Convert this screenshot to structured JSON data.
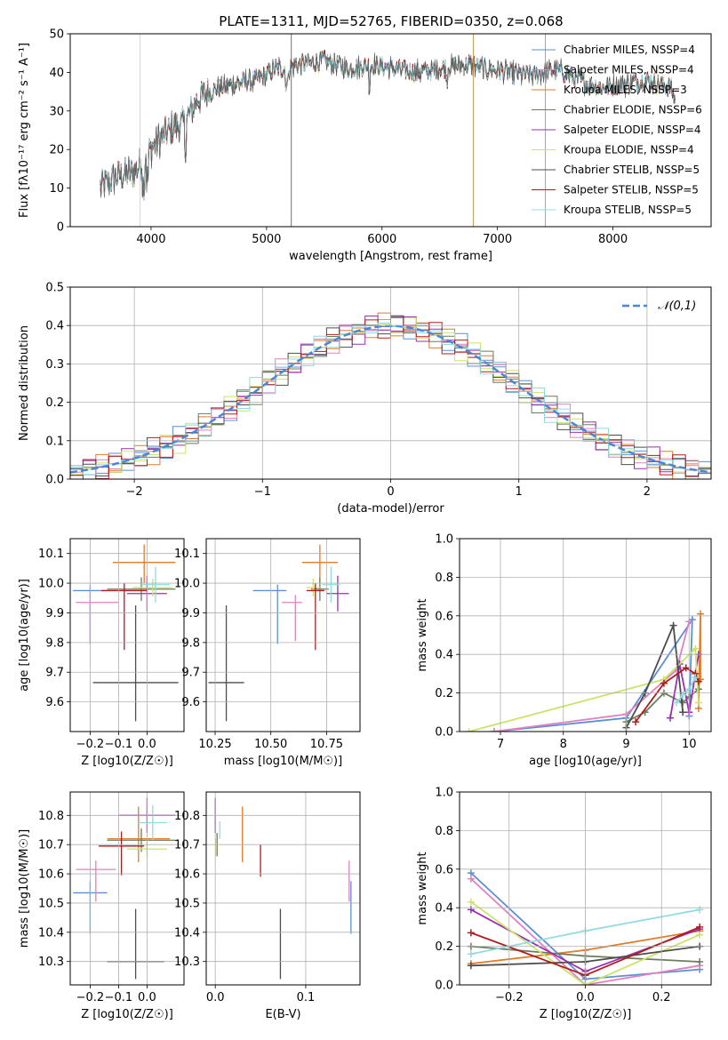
{
  "title": "PLATE=1311, MJD=52765, FIBERID=0350, z=0.068",
  "colors": {
    "chabrier_miles": "#5b8fd6",
    "salpeter_miles": "#e27fc0",
    "kroupa_miles": "#e07b2a",
    "chabrier_elodie": "#6a7d5e",
    "salpeter_elodie": "#9a2fb4",
    "kroupa_elodie": "#c9e46a",
    "chabrier_stelib": "#4d4d4d",
    "salpeter_stelib": "#b01c1c",
    "kroupa_stelib": "#8fdbe0",
    "spectrum": "#555555"
  },
  "chart_data": [
    {
      "id": "spectrum",
      "type": "line",
      "title": "PLATE=1311, MJD=52765, FIBERID=0350, z=0.068",
      "xlabel": "wavelength [Angstrom, rest frame]",
      "ylabel": "Flux [fλ10⁻¹⁷ erg cm⁻² s⁻¹ A⁻¹]",
      "xlim": [
        3300,
        8850
      ],
      "ylim": [
        0,
        50
      ],
      "xticks": [
        4000,
        5000,
        6000,
        7000,
        8000
      ],
      "yticks": [
        0,
        10,
        20,
        30,
        40,
        50
      ],
      "continuum": {
        "x": [
          3560,
          3700,
          3850,
          3950,
          4050,
          4200,
          4300,
          4400,
          4500,
          4700,
          4900,
          5100,
          5300,
          5500,
          5700,
          5900,
          6100,
          6300,
          6500,
          6700,
          6900,
          7100,
          7300,
          7500,
          7700,
          7900,
          8100,
          8300,
          8500,
          8540
        ],
        "y": [
          10,
          13,
          14,
          18,
          22,
          26,
          27,
          33,
          35,
          37,
          38,
          41,
          42,
          43,
          41,
          42,
          41,
          40,
          41,
          42,
          41,
          40,
          39,
          41,
          38,
          36,
          37,
          38,
          36,
          33
        ]
      },
      "legend": [
        {
          "label": "Chabrier MILES, NSSP=4",
          "color": "#5b8fd6"
        },
        {
          "label": "Salpeter MILES, NSSP=4",
          "color": "#e27fc0"
        },
        {
          "label": "Kroupa MILES, NSSP=3",
          "color": "#e07b2a"
        },
        {
          "label": "Chabrier ELODIE, NSSP=6",
          "color": "#6a7d5e"
        },
        {
          "label": "Salpeter ELODIE, NSSP=4",
          "color": "#9a2fb4"
        },
        {
          "label": "Kroupa ELODIE, NSSP=4",
          "color": "#c9e46a"
        },
        {
          "label": "Chabrier STELIB, NSSP=5",
          "color": "#4d4d4d"
        },
        {
          "label": "Salpeter STELIB, NSSP=5",
          "color": "#b01c1c"
        },
        {
          "label": "Kroupa STELIB, NSSP=5",
          "color": "#8fdbe0"
        }
      ],
      "legend_placement": "upper-right"
    },
    {
      "id": "residuals",
      "type": "line",
      "xlabel": "(data-model)/error",
      "ylabel": "Normed distribution",
      "xlim": [
        -2.5,
        2.5
      ],
      "ylim": [
        0,
        0.5
      ],
      "xticks": [
        -2,
        -1,
        0,
        1,
        2
      ],
      "yticks": [
        0.0,
        0.1,
        0.2,
        0.3,
        0.4,
        0.5
      ],
      "grid": true,
      "gaussian_label": "𝒩(0,1)",
      "gaussian_color": "#4a86d8",
      "legend_placement": "upper-right"
    },
    {
      "id": "age_vs_Z",
      "type": "scatter",
      "xlabel": "Z [log10(Z/Z☉)]",
      "ylabel": "age [log10(age/yr)]",
      "xlim": [
        -0.27,
        0.13
      ],
      "ylim": [
        9.5,
        10.15
      ],
      "xticks": [
        -0.2,
        -0.1,
        0.0
      ],
      "yticks": [
        9.6,
        9.7,
        9.8,
        9.9,
        10.0,
        10.1
      ],
      "grid": true,
      "points": [
        {
          "model": "chabrier_miles",
          "x": -0.2,
          "y": 9.975,
          "xerr": [
            0.06,
            0.06
          ],
          "yerr": [
            0.18,
            0.02
          ]
        },
        {
          "model": "salpeter_miles",
          "x": -0.2,
          "y": 9.935,
          "xerr": [
            0.05,
            0.1
          ],
          "yerr": [
            0.13,
            0.025
          ]
        },
        {
          "model": "kroupa_miles",
          "x": -0.01,
          "y": 10.07,
          "xerr": [
            0.11,
            0.11
          ],
          "yerr": [
            0.07,
            0.06
          ]
        },
        {
          "model": "chabrier_elodie",
          "x": -0.02,
          "y": 9.98,
          "xerr": [
            0.12,
            0.12
          ],
          "yerr": [
            0.04,
            0.04
          ]
        },
        {
          "model": "salpeter_elodie",
          "x": 0.0,
          "y": 9.965,
          "xerr": [
            0.07,
            0.07
          ],
          "yerr": [
            0.06,
            0.06
          ]
        },
        {
          "model": "kroupa_elodie",
          "x": 0.02,
          "y": 9.985,
          "xerr": [
            0.07,
            0.07
          ],
          "yerr": [
            0.03,
            0.03
          ]
        },
        {
          "model": "chabrier_stelib",
          "x": -0.04,
          "y": 9.665,
          "xerr": [
            0.15,
            0.15
          ],
          "yerr": [
            0.13,
            0.26
          ]
        },
        {
          "model": "salpeter_stelib",
          "x": -0.08,
          "y": 9.975,
          "xerr": [
            0.08,
            0.08
          ],
          "yerr": [
            0.2,
            0.025
          ]
        },
        {
          "model": "kroupa_stelib",
          "x": 0.03,
          "y": 9.995,
          "xerr": [
            0.05,
            0.05
          ],
          "yerr": [
            0.06,
            0.06
          ]
        }
      ]
    },
    {
      "id": "age_vs_mass",
      "type": "scatter",
      "xlabel": "mass [log10(M/M☉)]",
      "ylabel": "",
      "xlim": [
        10.21,
        10.9
      ],
      "ylim": [
        9.5,
        10.15
      ],
      "xticks": [
        10.25,
        10.5,
        10.75
      ],
      "yticks": [
        9.6,
        9.7,
        9.8,
        9.9,
        10.0,
        10.1
      ],
      "grid": true,
      "points": [
        {
          "model": "chabrier_miles",
          "x": 10.53,
          "y": 9.975,
          "xerr": [
            0.11,
            0.04
          ],
          "yerr": [
            0.18,
            0.02
          ]
        },
        {
          "model": "salpeter_miles",
          "x": 10.61,
          "y": 9.935,
          "xerr": [
            0.06,
            0.03
          ],
          "yerr": [
            0.13,
            0.025
          ]
        },
        {
          "model": "kroupa_miles",
          "x": 10.72,
          "y": 10.07,
          "xerr": [
            0.08,
            0.08
          ],
          "yerr": [
            0.07,
            0.06
          ]
        },
        {
          "model": "chabrier_elodie",
          "x": 10.72,
          "y": 9.98,
          "xerr": [
            0.04,
            0.04
          ],
          "yerr": [
            0.04,
            0.04
          ]
        },
        {
          "model": "salpeter_elodie",
          "x": 10.8,
          "y": 9.965,
          "xerr": [
            0.05,
            0.05
          ],
          "yerr": [
            0.06,
            0.06
          ]
        },
        {
          "model": "kroupa_elodie",
          "x": 10.69,
          "y": 9.985,
          "xerr": [
            0.03,
            0.03
          ],
          "yerr": [
            0.03,
            0.03
          ]
        },
        {
          "model": "chabrier_stelib",
          "x": 10.3,
          "y": 9.665,
          "xerr": [
            0.08,
            0.08
          ],
          "yerr": [
            0.13,
            0.26
          ]
        },
        {
          "model": "salpeter_stelib",
          "x": 10.7,
          "y": 9.975,
          "xerr": [
            0.04,
            0.04
          ],
          "yerr": [
            0.2,
            0.025
          ]
        },
        {
          "model": "kroupa_stelib",
          "x": 10.77,
          "y": 9.995,
          "xerr": [
            0.04,
            0.04
          ],
          "yerr": [
            0.06,
            0.06
          ]
        }
      ]
    },
    {
      "id": "mass_weight_vs_age",
      "type": "line",
      "xlabel": "age [log10(age/yr)]",
      "ylabel": "mass weight",
      "xlim": [
        6.35,
        10.35
      ],
      "ylim": [
        0,
        1.0
      ],
      "xticks": [
        7,
        8,
        9,
        10
      ],
      "yticks": [
        0.0,
        0.2,
        0.4,
        0.6,
        0.8,
        1.0
      ],
      "grid": true,
      "series": [
        {
          "model": "chabrier_miles",
          "x": [
            6.9,
            9.0,
            10.05,
            10.0
          ],
          "y": [
            0.0,
            0.07,
            0.58,
            0.08
          ]
        },
        {
          "model": "salpeter_miles",
          "x": [
            6.9,
            9.0,
            9.8,
            10.0
          ],
          "y": [
            0.0,
            0.09,
            0.32,
            0.57
          ]
        },
        {
          "model": "kroupa_miles",
          "x": [
            10.15,
            10.18,
            10.18
          ],
          "y": [
            0.12,
            0.61,
            0.27
          ]
        },
        {
          "model": "chabrier_elodie",
          "x": [
            9.0,
            9.3,
            9.6,
            9.9,
            10.0,
            10.15
          ],
          "y": [
            0.05,
            0.1,
            0.2,
            0.15,
            0.18,
            0.22
          ]
        },
        {
          "model": "salpeter_elodie",
          "x": [
            9.7,
            9.85,
            10.0,
            10.15
          ],
          "y": [
            0.07,
            0.35,
            0.1,
            0.4
          ]
        },
        {
          "model": "kroupa_elodie",
          "x": [
            6.5,
            9.6,
            10.1,
            10.15
          ],
          "y": [
            0.0,
            0.27,
            0.43,
            0.15
          ]
        },
        {
          "model": "chabrier_stelib",
          "x": [
            9.0,
            9.3,
            9.75,
            9.9
          ],
          "y": [
            0.02,
            0.2,
            0.55,
            0.1
          ]
        },
        {
          "model": "salpeter_stelib",
          "x": [
            9.15,
            9.6,
            9.95,
            10.1,
            10.15
          ],
          "y": [
            0.05,
            0.25,
            0.33,
            0.3,
            0.26
          ]
        },
        {
          "model": "kroupa_stelib",
          "x": [
            9.8,
            9.9,
            10.0,
            10.1
          ],
          "y": [
            0.15,
            0.19,
            0.22,
            0.28
          ]
        }
      ]
    },
    {
      "id": "mass_vs_Z",
      "type": "scatter",
      "xlabel": "Z [log10(Z/Z☉)]",
      "ylabel": "mass [log10(M/M☉)]",
      "xlim": [
        -0.27,
        0.13
      ],
      "ylim": [
        10.22,
        10.88
      ],
      "xticks": [
        -0.2,
        -0.1,
        0.0
      ],
      "yticks": [
        10.3,
        10.4,
        10.5,
        10.6,
        10.7,
        10.8
      ],
      "grid": true,
      "points": [
        {
          "model": "chabrier_miles",
          "x": -0.2,
          "y": 10.535,
          "xerr": [
            0.06,
            0.06
          ],
          "yerr": [
            0.14,
            0.04
          ]
        },
        {
          "model": "salpeter_miles",
          "x": -0.18,
          "y": 10.615,
          "xerr": [
            0.07,
            0.07
          ],
          "yerr": [
            0.11,
            0.03
          ]
        },
        {
          "model": "kroupa_miles",
          "x": -0.03,
          "y": 10.72,
          "xerr": [
            0.11,
            0.11
          ],
          "yerr": [
            0.08,
            0.11
          ]
        },
        {
          "model": "chabrier_elodie",
          "x": -0.02,
          "y": 10.715,
          "xerr": [
            0.12,
            0.12
          ],
          "yerr": [
            0.04,
            0.04
          ]
        },
        {
          "model": "salpeter_elodie",
          "x": 0.0,
          "y": 10.8,
          "xerr": [
            0.1,
            0.1
          ],
          "yerr": [
            0.06,
            0.06
          ]
        },
        {
          "model": "kroupa_elodie",
          "x": 0.0,
          "y": 10.685,
          "xerr": [
            0.07,
            0.07
          ],
          "yerr": [
            0.03,
            0.03
          ]
        },
        {
          "model": "chabrier_stelib",
          "x": -0.04,
          "y": 10.3,
          "xerr": [
            0.1,
            0.1
          ],
          "yerr": [
            0.06,
            0.18
          ]
        },
        {
          "model": "salpeter_stelib",
          "x": -0.09,
          "y": 10.695,
          "xerr": [
            0.08,
            0.08
          ],
          "yerr": [
            0.1,
            0.05
          ]
        },
        {
          "model": "kroupa_stelib",
          "x": 0.02,
          "y": 10.775,
          "xerr": [
            0.05,
            0.05
          ],
          "yerr": [
            0.06,
            0.06
          ]
        }
      ]
    },
    {
      "id": "mass_vs_ebv",
      "type": "scatter",
      "xlabel": "E(B-V)",
      "ylabel": "",
      "xlim": [
        -0.01,
        0.16
      ],
      "ylim": [
        10.22,
        10.88
      ],
      "xticks": [
        0.0,
        0.1
      ],
      "yticks": [
        10.3,
        10.4,
        10.5,
        10.6,
        10.7,
        10.8
      ],
      "grid": true,
      "points": [
        {
          "model": "chabrier_miles",
          "x": 0.15,
          "y": 10.535,
          "xerr": [
            0.0,
            0.0
          ],
          "yerr": [
            0.14,
            0.04
          ]
        },
        {
          "model": "salpeter_miles",
          "x": 0.148,
          "y": 10.615,
          "xerr": [
            0.0,
            0.0
          ],
          "yerr": [
            0.11,
            0.03
          ]
        },
        {
          "model": "kroupa_miles",
          "x": 0.03,
          "y": 10.72,
          "xerr": [
            0.0,
            0.0
          ],
          "yerr": [
            0.08,
            0.11
          ]
        },
        {
          "model": "chabrier_elodie",
          "x": 0.002,
          "y": 10.7,
          "xerr": [
            0.0,
            0.0
          ],
          "yerr": [
            0.04,
            0.04
          ]
        },
        {
          "model": "salpeter_elodie",
          "x": 0.0,
          "y": 10.8,
          "xerr": [
            0.0,
            0.0
          ],
          "yerr": [
            0.06,
            0.06
          ]
        },
        {
          "model": "kroupa_elodie",
          "x": 0.001,
          "y": 10.69,
          "xerr": [
            0.0,
            0.0
          ],
          "yerr": [
            0.03,
            0.03
          ]
        },
        {
          "model": "chabrier_stelib",
          "x": 0.072,
          "y": 10.3,
          "xerr": [
            0.0,
            0.0
          ],
          "yerr": [
            0.06,
            0.18
          ]
        },
        {
          "model": "salpeter_stelib",
          "x": 0.05,
          "y": 10.64,
          "xerr": [
            0.0,
            0.0
          ],
          "yerr": [
            0.05,
            0.06
          ]
        },
        {
          "model": "kroupa_stelib",
          "x": 0.005,
          "y": 10.75,
          "xerr": [
            0.0,
            0.0
          ],
          "yerr": [
            0.03,
            0.03
          ]
        }
      ]
    },
    {
      "id": "mass_weight_vs_Z",
      "type": "line",
      "xlabel": "Z [log10(Z/Z☉)]",
      "ylabel": "mass weight",
      "xlim": [
        -0.33,
        0.33
      ],
      "ylim": [
        0,
        1.0
      ],
      "xticks": [
        -0.2,
        0.0,
        0.2
      ],
      "yticks": [
        0.0,
        0.2,
        0.4,
        0.6,
        0.8,
        1.0
      ],
      "grid": true,
      "series": [
        {
          "model": "chabrier_miles",
          "x": [
            -0.3,
            0.0,
            0.3
          ],
          "y": [
            0.58,
            0.03,
            0.08
          ]
        },
        {
          "model": "salpeter_miles",
          "x": [
            -0.3,
            0.0,
            0.3
          ],
          "y": [
            0.55,
            0.0,
            0.1
          ]
        },
        {
          "model": "kroupa_miles",
          "x": [
            -0.3,
            0.0,
            0.3
          ],
          "y": [
            0.11,
            0.18,
            0.28
          ]
        },
        {
          "model": "chabrier_elodie",
          "x": [
            -0.3,
            0.0,
            0.3
          ],
          "y": [
            0.2,
            0.15,
            0.12
          ]
        },
        {
          "model": "salpeter_elodie",
          "x": [
            -0.3,
            0.0,
            0.3
          ],
          "y": [
            0.39,
            0.07,
            0.29
          ]
        },
        {
          "model": "kroupa_elodie",
          "x": [
            -0.3,
            0.0,
            0.3
          ],
          "y": [
            0.43,
            0.0,
            0.26
          ]
        },
        {
          "model": "chabrier_stelib",
          "x": [
            -0.3,
            0.0,
            0.3
          ],
          "y": [
            0.1,
            0.12,
            0.2
          ]
        },
        {
          "model": "salpeter_stelib",
          "x": [
            -0.3,
            0.0,
            0.3
          ],
          "y": [
            0.27,
            0.05,
            0.3
          ]
        },
        {
          "model": "kroupa_stelib",
          "x": [
            -0.3,
            0.0,
            0.3
          ],
          "y": [
            0.16,
            0.28,
            0.39
          ]
        }
      ]
    }
  ]
}
